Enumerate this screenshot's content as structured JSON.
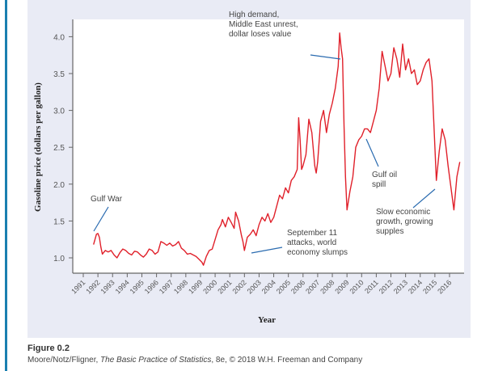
{
  "caption": {
    "figure_label": "Figure 0.2",
    "credit_prefix": "Moore/Notz/Fligner, ",
    "credit_title": "The Basic Practice of Statistics",
    "credit_suffix": ", 8e, © 2018 W.H. Freeman and Company"
  },
  "colors": {
    "line": "#e0202a",
    "annotation_line": "#2a6bb0",
    "panel": "#e9ebf5",
    "accent_bar": "#1a7fb0"
  },
  "chart_data": {
    "type": "line",
    "title": "",
    "xlabel": "Year",
    "ylabel": "Gasoline price (dollars per gallon)",
    "xlim": [
      1991,
      2016
    ],
    "ylim": [
      0.8,
      4.1
    ],
    "yticks": [
      1.0,
      1.5,
      2.0,
      2.5,
      3.0,
      3.5,
      4.0
    ],
    "ytick_labels": [
      "1.0",
      "1.5",
      "2.0",
      "2.5",
      "3.0",
      "3.5",
      "4.0"
    ],
    "xtick_labels": [
      "1991",
      "1992",
      "1993",
      "1994",
      "1995",
      "1996",
      "1997",
      "1998",
      "1999",
      "2000",
      "2001",
      "2002",
      "2003",
      "2004",
      "2005",
      "2006",
      "2007",
      "2008",
      "2009",
      "2010",
      "2011",
      "2012",
      "2013",
      "2014",
      "2015",
      "2016"
    ],
    "grid": false,
    "series": [
      {
        "name": "Gasoline price",
        "x": [
          1991.7,
          1991.8,
          1991.9,
          1992.0,
          1992.1,
          1992.2,
          1992.3,
          1992.5,
          1992.7,
          1992.9,
          1993.1,
          1993.3,
          1993.5,
          1993.7,
          1993.9,
          1994.1,
          1994.3,
          1994.5,
          1994.7,
          1994.9,
          1995.1,
          1995.3,
          1995.5,
          1995.7,
          1995.9,
          1996.1,
          1996.3,
          1996.5,
          1996.7,
          1996.9,
          1997.1,
          1997.3,
          1997.5,
          1997.7,
          1997.9,
          1998.1,
          1998.3,
          1998.5,
          1998.7,
          1998.9,
          1999.1,
          1999.2,
          1999.4,
          1999.6,
          1999.8,
          2000.0,
          2000.2,
          2000.4,
          2000.5,
          2000.7,
          2000.9,
          2001.1,
          2001.3,
          2001.4,
          2001.6,
          2001.8,
          2001.9,
          2002.0,
          2002.2,
          2002.4,
          2002.6,
          2002.8,
          2003.0,
          2003.2,
          2003.4,
          2003.6,
          2003.8,
          2004.0,
          2004.2,
          2004.4,
          2004.6,
          2004.8,
          2005.0,
          2005.2,
          2005.4,
          2005.6,
          2005.7,
          2005.8,
          2005.9,
          2006.0,
          2006.2,
          2006.4,
          2006.6,
          2006.8,
          2006.9,
          2007.0,
          2007.2,
          2007.4,
          2007.6,
          2007.8,
          2008.0,
          2008.2,
          2008.4,
          2008.5,
          2008.6,
          2008.7,
          2008.8,
          2008.9,
          2009.0,
          2009.2,
          2009.4,
          2009.6,
          2009.8,
          2010.0,
          2010.2,
          2010.4,
          2010.6,
          2010.8,
          2011.0,
          2011.2,
          2011.4,
          2011.6,
          2011.8,
          2012.0,
          2012.2,
          2012.4,
          2012.6,
          2012.8,
          2013.0,
          2013.2,
          2013.4,
          2013.6,
          2013.8,
          2014.0,
          2014.2,
          2014.4,
          2014.6,
          2014.8,
          2015.0,
          2015.1,
          2015.3,
          2015.5,
          2015.7,
          2015.9,
          2016.1,
          2016.3,
          2016.5,
          2016.7
        ],
        "y": [
          1.18,
          1.25,
          1.32,
          1.33,
          1.28,
          1.15,
          1.05,
          1.1,
          1.08,
          1.1,
          1.04,
          1.0,
          1.07,
          1.12,
          1.1,
          1.06,
          1.04,
          1.09,
          1.08,
          1.04,
          1.01,
          1.05,
          1.12,
          1.1,
          1.05,
          1.08,
          1.22,
          1.2,
          1.17,
          1.2,
          1.16,
          1.18,
          1.22,
          1.13,
          1.1,
          1.05,
          1.06,
          1.04,
          1.02,
          0.98,
          0.94,
          0.9,
          1.02,
          1.1,
          1.12,
          1.25,
          1.38,
          1.45,
          1.52,
          1.42,
          1.55,
          1.48,
          1.4,
          1.62,
          1.5,
          1.3,
          1.22,
          1.1,
          1.28,
          1.32,
          1.38,
          1.3,
          1.45,
          1.55,
          1.5,
          1.6,
          1.48,
          1.55,
          1.7,
          1.85,
          1.8,
          1.95,
          1.88,
          2.05,
          2.1,
          2.2,
          2.9,
          2.6,
          2.2,
          2.25,
          2.4,
          2.88,
          2.7,
          2.25,
          2.15,
          2.3,
          2.85,
          3.0,
          2.7,
          2.95,
          3.1,
          3.3,
          3.6,
          4.05,
          3.85,
          3.7,
          2.8,
          2.1,
          1.65,
          1.9,
          2.1,
          2.5,
          2.6,
          2.65,
          2.75,
          2.75,
          2.7,
          2.85,
          3.0,
          3.3,
          3.8,
          3.6,
          3.4,
          3.5,
          3.85,
          3.7,
          3.45,
          3.9,
          3.55,
          3.7,
          3.5,
          3.55,
          3.35,
          3.4,
          3.55,
          3.65,
          3.7,
          3.4,
          2.5,
          2.05,
          2.45,
          2.75,
          2.6,
          2.25,
          1.95,
          1.65,
          2.1,
          2.3
        ]
      }
    ],
    "annotations": [
      {
        "text": "Gulf War",
        "x": 1992.0,
        "y": 1.33
      },
      {
        "text": "High demand,\nMiddle East unrest,\ndollar loses value",
        "x": 2008.4,
        "y": 3.75
      },
      {
        "text": "September 11\nattacks, world\neconomy slumps",
        "x": 2001.9,
        "y": 1.05
      },
      {
        "text": "Gulf oil\nspill",
        "x": 2010.4,
        "y": 2.65
      },
      {
        "text": "Slow economic\ngrowth, growing\nsupples",
        "x": 2015.0,
        "y": 2.0
      }
    ]
  }
}
